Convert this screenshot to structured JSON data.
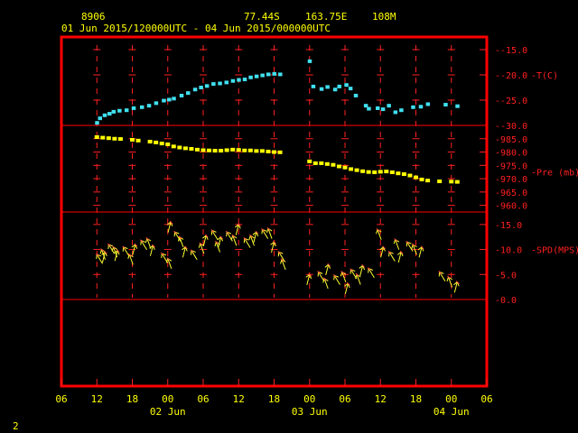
{
  "header": {
    "station": "8906",
    "lat": "77.44S",
    "lon": "163.75E",
    "elev": "108M",
    "period": "01 Jun 2015/120000UTC - 04 Jun 2015/000000UTC"
  },
  "corner_label": "2",
  "colors": {
    "frame": "#ff0000",
    "grid": "#ff2020",
    "temp": "#40e0f0",
    "pres": "#ffff00",
    "wind": "#ffff30",
    "text": "#ffff00"
  },
  "chart_data": {
    "type": "scatter",
    "x_units": "hours since 01 Jun 2015 00 UTC",
    "x_ticks": [
      {
        "label": "06",
        "hour": 6
      },
      {
        "label": "12",
        "hour": 12
      },
      {
        "label": "18",
        "hour": 18
      },
      {
        "label": "00",
        "hour": 24
      },
      {
        "label": "06",
        "hour": 30
      },
      {
        "label": "12",
        "hour": 36
      },
      {
        "label": "18",
        "hour": 42
      },
      {
        "label": "00",
        "hour": 48
      },
      {
        "label": "06",
        "hour": 54
      },
      {
        "label": "12",
        "hour": 60
      },
      {
        "label": "18",
        "hour": 66
      },
      {
        "label": "00",
        "hour": 72
      },
      {
        "label": "06",
        "hour": 78
      }
    ],
    "date_labels": [
      {
        "label": "02 Jun",
        "hour": 24
      },
      {
        "label": "03 Jun",
        "hour": 48
      },
      {
        "label": "04 Jun",
        "hour": 72
      }
    ],
    "xlim": [
      6,
      78
    ],
    "panels": [
      {
        "id": "temp",
        "ylabel": "T(C)",
        "ylim": [
          -30,
          -12.5
        ],
        "ticks": [
          {
            "label": "-15.0",
            "v": -15
          },
          {
            "label": "-20.0",
            "v": -20
          },
          {
            "label": "-25.0",
            "v": -25
          },
          {
            "label": "-30.0",
            "v": -30
          }
        ],
        "points": [
          [
            12.0,
            -29.5
          ],
          [
            12.5,
            -28.6
          ],
          [
            13.3,
            -28.0
          ],
          [
            14.1,
            -27.7
          ],
          [
            14.8,
            -27.3
          ],
          [
            15.8,
            -27.1
          ],
          [
            17.0,
            -27.0
          ],
          [
            18.2,
            -26.6
          ],
          [
            19.6,
            -26.4
          ],
          [
            20.8,
            -26.1
          ],
          [
            22.0,
            -25.6
          ],
          [
            23.3,
            -25.1
          ],
          [
            24.2,
            -24.9
          ],
          [
            25.0,
            -24.7
          ],
          [
            26.3,
            -24.1
          ],
          [
            27.4,
            -23.6
          ],
          [
            28.6,
            -22.9
          ],
          [
            29.6,
            -22.5
          ],
          [
            30.6,
            -22.2
          ],
          [
            31.7,
            -21.8
          ],
          [
            32.8,
            -21.7
          ],
          [
            33.9,
            -21.5
          ],
          [
            35.0,
            -21.2
          ],
          [
            36.0,
            -21.0
          ],
          [
            37.0,
            -20.9
          ],
          [
            38.0,
            -20.5
          ],
          [
            39.0,
            -20.3
          ],
          [
            40.0,
            -20.1
          ],
          [
            41.0,
            -19.9
          ],
          [
            42.0,
            -19.8
          ],
          [
            43.0,
            -19.9
          ],
          [
            48.0,
            -17.3
          ],
          [
            48.6,
            -22.3
          ],
          [
            50.0,
            -22.8
          ],
          [
            51.0,
            -22.4
          ],
          [
            52.3,
            -22.9
          ],
          [
            53.0,
            -22.3
          ],
          [
            54.2,
            -22.0
          ],
          [
            54.9,
            -22.7
          ],
          [
            55.8,
            -24.1
          ],
          [
            57.5,
            -26.1
          ],
          [
            58.0,
            -26.7
          ],
          [
            59.5,
            -26.6
          ],
          [
            60.4,
            -26.8
          ],
          [
            61.4,
            -26.1
          ],
          [
            62.5,
            -27.4
          ],
          [
            63.5,
            -27.0
          ],
          [
            65.5,
            -26.4
          ],
          [
            66.8,
            -26.3
          ],
          [
            68.0,
            -25.8
          ],
          [
            71.0,
            -25.9
          ],
          [
            73.0,
            -26.2
          ]
        ]
      },
      {
        "id": "pres",
        "ylabel": "Pre (mb)",
        "ylim": [
          957.5,
          990
        ],
        "ticks": [
          {
            "label": "985.0",
            "v": 985
          },
          {
            "label": "980.0",
            "v": 980
          },
          {
            "label": "975.0",
            "v": 975
          },
          {
            "label": "970.0",
            "v": 970
          },
          {
            "label": "965.0",
            "v": 965
          },
          {
            "label": "960.0",
            "v": 960
          }
        ],
        "points": [
          [
            12.0,
            985.6
          ],
          [
            13.0,
            985.4
          ],
          [
            14.0,
            985.2
          ],
          [
            15.0,
            985.0
          ],
          [
            16.0,
            984.9
          ],
          [
            18.0,
            984.6
          ],
          [
            19.0,
            984.3
          ],
          [
            21.0,
            983.9
          ],
          [
            22.0,
            983.6
          ],
          [
            23.0,
            983.2
          ],
          [
            24.0,
            982.9
          ],
          [
            25.0,
            982.1
          ],
          [
            26.0,
            981.7
          ],
          [
            27.0,
            981.4
          ],
          [
            28.0,
            981.2
          ],
          [
            29.0,
            980.9
          ],
          [
            30.0,
            980.7
          ],
          [
            31.0,
            980.6
          ],
          [
            32.0,
            980.5
          ],
          [
            33.0,
            980.5
          ],
          [
            34.0,
            980.7
          ],
          [
            35.0,
            980.9
          ],
          [
            36.0,
            980.8
          ],
          [
            37.0,
            980.6
          ],
          [
            38.0,
            980.6
          ],
          [
            39.0,
            980.4
          ],
          [
            40.0,
            980.4
          ],
          [
            41.0,
            980.2
          ],
          [
            42.0,
            980.0
          ],
          [
            43.0,
            979.9
          ],
          [
            48.0,
            976.5
          ],
          [
            49.0,
            975.8
          ],
          [
            50.0,
            975.8
          ],
          [
            51.0,
            975.5
          ],
          [
            52.0,
            975.2
          ],
          [
            53.0,
            974.6
          ],
          [
            54.0,
            974.2
          ],
          [
            55.0,
            973.6
          ],
          [
            56.0,
            973.2
          ],
          [
            57.0,
            972.8
          ],
          [
            58.0,
            972.5
          ],
          [
            59.0,
            972.4
          ],
          [
            60.0,
            972.6
          ],
          [
            61.0,
            972.7
          ],
          [
            62.0,
            972.4
          ],
          [
            63.0,
            972.0
          ],
          [
            64.0,
            971.7
          ],
          [
            65.0,
            971.2
          ],
          [
            66.0,
            970.5
          ],
          [
            67.0,
            969.7
          ],
          [
            68.0,
            969.3
          ],
          [
            70.0,
            969.0
          ],
          [
            72.0,
            968.9
          ],
          [
            73.0,
            968.8
          ]
        ]
      },
      {
        "id": "wind",
        "ylabel": "SPD(MPS)",
        "ylim": [
          0,
          17.5
        ],
        "ticks": [
          {
            "label": "15.0",
            "v": 15
          },
          {
            "label": "10.0",
            "v": 10
          },
          {
            "label": "5.0",
            "v": 5
          },
          {
            "label": "0.0",
            "v": 0
          }
        ],
        "points": [
          [
            12.0,
            9.0
          ],
          [
            12.8,
            10.0
          ],
          [
            13.4,
            9.5
          ],
          [
            14.0,
            11.0
          ],
          [
            14.8,
            10.5
          ],
          [
            15.5,
            9.8
          ],
          [
            16.5,
            10.5
          ],
          [
            17.5,
            9.0
          ],
          [
            18.5,
            11.0
          ],
          [
            19.5,
            11.8
          ],
          [
            20.5,
            12.2
          ],
          [
            21.5,
            10.8
          ],
          [
            23.0,
            9.2
          ],
          [
            24.0,
            8.2
          ],
          [
            24.5,
            15.5
          ],
          [
            25.2,
            13.5
          ],
          [
            26.0,
            12.5
          ],
          [
            27.0,
            10.5
          ],
          [
            28.0,
            9.8
          ],
          [
            29.5,
            11.2
          ],
          [
            30.5,
            12.8
          ],
          [
            31.5,
            13.8
          ],
          [
            32.2,
            11.5
          ],
          [
            33.0,
            12.5
          ],
          [
            34.0,
            13.5
          ],
          [
            35.0,
            12.8
          ],
          [
            36.0,
            15.0
          ],
          [
            37.0,
            12.2
          ],
          [
            38.0,
            12.8
          ],
          [
            39.0,
            13.5
          ],
          [
            40.0,
            14.0
          ],
          [
            41.0,
            14.2
          ],
          [
            42.0,
            11.5
          ],
          [
            42.8,
            9.5
          ],
          [
            43.3,
            8.0
          ],
          [
            48.0,
            5.0
          ],
          [
            49.5,
            5.5
          ],
          [
            50.5,
            4.2
          ],
          [
            51.2,
            7.0
          ],
          [
            52.2,
            4.8
          ],
          [
            53.5,
            5.5
          ],
          [
            54.5,
            3.2
          ],
          [
            55.0,
            6.0
          ],
          [
            56.0,
            5.0
          ],
          [
            57.0,
            6.8
          ],
          [
            58.0,
            6.2
          ],
          [
            59.5,
            14.0
          ],
          [
            60.5,
            10.5
          ],
          [
            61.5,
            9.5
          ],
          [
            62.5,
            12.0
          ],
          [
            63.5,
            9.5
          ],
          [
            64.5,
            11.5
          ],
          [
            65.5,
            11.0
          ],
          [
            67.0,
            10.5
          ],
          [
            70.0,
            5.5
          ],
          [
            71.5,
            4.5
          ],
          [
            73.0,
            3.5
          ]
        ]
      }
    ]
  }
}
